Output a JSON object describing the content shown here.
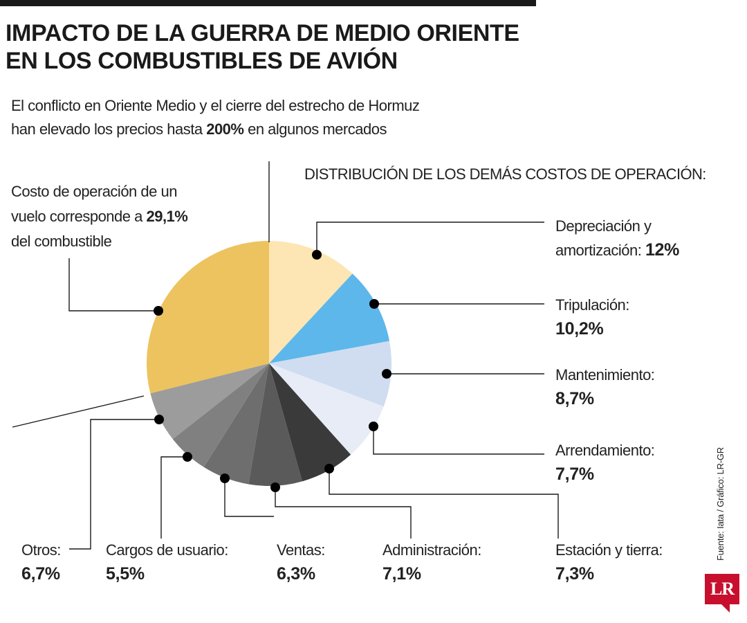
{
  "title_lines": [
    "IMPACTO DE LA GUERRA DE MEDIO ORIENTE",
    "EN LOS COMBUSTIBLES DE AVIÓN"
  ],
  "subtitle": {
    "line1": "El conflicto en Oriente Medio y el cierre del estrecho de Hormuz",
    "line2_pre": "han elevado los precios hasta ",
    "line2_bold": "200%",
    "line2_post": " en algunos mercados"
  },
  "fuel_note": {
    "line1": "Costo de operación de un",
    "line2_pre": "vuelo corresponde a ",
    "line2_bold": "29,1%",
    "line3": "del combustible"
  },
  "rest_heading": "DISTRIBUCIÓN DE LOS DEMÁS COSTOS DE OPERACIÓN:",
  "labels": {
    "depreciacion": {
      "line1": "Depreciación y",
      "line2": "amortización: ",
      "value": "12%"
    },
    "tripulacion": {
      "line1": "Tripulación:",
      "value": "10,2%"
    },
    "mantenimiento": {
      "line1": "Mantenimiento:",
      "value": "8,7%"
    },
    "arrendamiento": {
      "line1": "Arrendamiento:",
      "value": "7,7%"
    },
    "estacion": {
      "line1": "Estación y tierra:",
      "value": "7,3%"
    },
    "administracion": {
      "line1": "Administración:",
      "value": "7,1%"
    },
    "ventas": {
      "line1": "Ventas:",
      "value": "6,3%"
    },
    "cargos": {
      "line1": "Cargos de usuario:",
      "value": "5,5%"
    },
    "otros": {
      "line1": "Otros:",
      "value": "6,7%"
    }
  },
  "source": "Fuente: Iata / Gráfico: LR-GR",
  "logo_text": "LR",
  "chart_data": {
    "type": "pie",
    "categories": [
      "Depreciación y amortización",
      "Tripulación",
      "Mantenimiento",
      "Arrendamiento",
      "Estación y tierra",
      "Administración",
      "Ventas",
      "Cargos de usuario",
      "Otros",
      "Combustible"
    ],
    "values": [
      12,
      10.2,
      8.7,
      7.7,
      7.3,
      7.1,
      6.3,
      5.5,
      6.7,
      29.1
    ],
    "colors": [
      "#fde6b3",
      "#5db7ea",
      "#d0ddf0",
      "#e7ecf7",
      "#3a3a3a",
      "#5a5a5a",
      "#6e6e6e",
      "#808080",
      "#9c9c9c",
      "#ecc35e"
    ],
    "start": "12 o'clock, clockwise"
  }
}
